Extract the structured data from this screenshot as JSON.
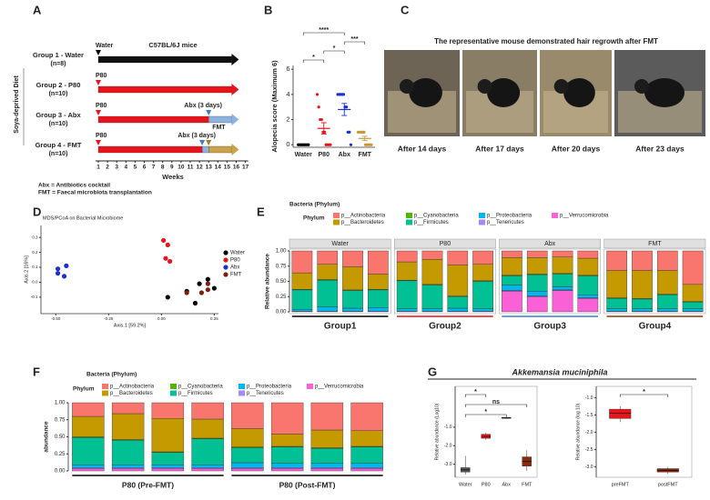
{
  "panel_labels": [
    "A",
    "B",
    "C",
    "D",
    "E",
    "F",
    "G"
  ],
  "timeline": {
    "strain": "C57BL/6J mice",
    "diet": "Soya-deprived Diet",
    "axis_label": "Weeks",
    "weeks": [
      1,
      2,
      3,
      4,
      5,
      6,
      7,
      8,
      9,
      10,
      11,
      12,
      13,
      14,
      15,
      16,
      17
    ],
    "groups": [
      {
        "name": "Group 1 - Water",
        "n": "(n=8)",
        "color": "#000000",
        "segments": [
          {
            "from": 1,
            "to": 15.5,
            "color": "#111111"
          }
        ],
        "markers": [
          {
            "week": 1,
            "label": "Water",
            "color": "#000000"
          }
        ]
      },
      {
        "name": "Group 2 - P80",
        "n": "(n=10)",
        "color": "#e8141b",
        "segments": [
          {
            "from": 1,
            "to": 15.5,
            "color": "#e8141b"
          }
        ],
        "markers": [
          {
            "week": 1,
            "label": "P80",
            "color": "#e8141b"
          }
        ]
      },
      {
        "name": "Group 3 - Abx",
        "n": "(n=10)",
        "color": "#3d7cc9",
        "segments": [
          {
            "from": 1,
            "to": 13,
            "color": "#e8141b"
          },
          {
            "from": 13,
            "to": 15.5,
            "color": "#8fb3e0"
          }
        ],
        "markers": [
          {
            "week": 1,
            "label": "P80",
            "color": "#e8141b"
          },
          {
            "week": 13,
            "label": "Abx (3 days)",
            "color": "#3d7cc9"
          }
        ]
      },
      {
        "name": "Group 4 - FMT",
        "n": "(n=10)",
        "color": "#a07c1c",
        "segments": [
          {
            "from": 1,
            "to": 12.3,
            "color": "#e8141b"
          },
          {
            "from": 12.3,
            "to": 13,
            "color": "#8fb3e0"
          },
          {
            "from": 13,
            "to": 15.5,
            "color": "#c9a24a"
          }
        ],
        "markers": [
          {
            "week": 1,
            "label": "P80",
            "color": "#e8141b"
          },
          {
            "week": 12.3,
            "label": "Abx (3 days)",
            "color": "#3d7cc9"
          },
          {
            "week": 13,
            "label": "FMT",
            "color": "#a07c1c"
          }
        ]
      }
    ],
    "footnotes": [
      "Abx = Antibiotics cocktail",
      "FMT = Faecal microbiota transplantation"
    ]
  },
  "photos": {
    "title": "The representative mouse demonstrated hair regrowth after FMT",
    "captions": [
      "After 14 days",
      "After 17 days",
      "After 20 days",
      "After 23 days"
    ]
  },
  "chart_data": [
    {
      "type": "dotplot",
      "ylabel": "Alopecia score (Maximum 6)",
      "categories": [
        "Water",
        "P80",
        "Abx",
        "FMT"
      ],
      "colors": [
        "#000000",
        "#e8141b",
        "#1c2fd0",
        "#c9973a"
      ],
      "values": [
        [
          0,
          0,
          0,
          0,
          0,
          0,
          0,
          0
        ],
        [
          4,
          3,
          2,
          2,
          1,
          1,
          0,
          0,
          0,
          0
        ],
        [
          4,
          4,
          4,
          4,
          4,
          3,
          3,
          1,
          1,
          0
        ],
        [
          1,
          1,
          1,
          1,
          1,
          0,
          0,
          0,
          0,
          0
        ]
      ],
      "means": [
        0,
        1.3,
        2.8,
        0.5
      ],
      "errors": [
        0,
        0.45,
        0.48,
        0.17
      ],
      "ylim": [
        -0.2,
        6.3
      ],
      "yticks": [
        0,
        2,
        4,
        6
      ],
      "comparisons": [
        {
          "from": "Water",
          "to": "Abx",
          "label": "****"
        },
        {
          "from": "Abx",
          "to": "FMT",
          "label": "***"
        },
        {
          "from": "P80",
          "to": "Abx",
          "label": "*"
        },
        {
          "from": "Water",
          "to": "P80",
          "label": "*"
        }
      ]
    },
    {
      "type": "scatter",
      "title": "MDS/PCoA on Bacterial Microbiome",
      "xlabel": "Axis.1   [59.2%]",
      "ylabel": "Axis.2   [16%]",
      "series": [
        {
          "name": "Water",
          "color": "#000000",
          "x": [
            0.03,
            0.12,
            0.16,
            0.18,
            0.22,
            0.25
          ],
          "y": [
            -0.1,
            -0.06,
            -0.14,
            -0.01,
            0.02,
            -0.04
          ]
        },
        {
          "name": "P80",
          "color": "#e8141b",
          "x": [
            0.01,
            0.03,
            0.02,
            0.04
          ],
          "y": [
            0.28,
            0.25,
            0.16,
            0.14
          ]
        },
        {
          "name": "Abx",
          "color": "#1c2fd0",
          "x": [
            -0.49,
            -0.45,
            -0.49,
            -0.46
          ],
          "y": [
            0.09,
            0.11,
            0.06,
            0.04
          ]
        },
        {
          "name": "FMT",
          "color": "#7a1f12",
          "x": [
            0.12,
            0.19,
            0.22,
            0.22
          ],
          "y": [
            -0.07,
            -0.07,
            -0.05,
            -0.01
          ]
        }
      ],
      "xlim": [
        -0.57,
        0.27
      ],
      "ylim": [
        -0.21,
        0.38
      ],
      "xticks": [
        {
          "value": -0.5,
          "label": "-0.50"
        },
        -0.25,
        {
          "value": 0,
          "label": "0.00"
        },
        0.25
      ],
      "yticks": [
        -0.1,
        {
          "value": 0,
          "label": "0.0"
        },
        0.1,
        0.2,
        0.3
      ]
    },
    {
      "type": "bar",
      "stacked": true,
      "title": "Bacteria (Phylum)",
      "legend_title": "Phylum",
      "ylabel": "Relative abundance",
      "categories": [
        null,
        null,
        null,
        null,
        null,
        null,
        null,
        null,
        null,
        null,
        null,
        null,
        null,
        null,
        null,
        null
      ],
      "facets": [
        "Water",
        "P80",
        "Abx",
        "FMT"
      ],
      "groups": [
        "Group1",
        "Group2",
        "Group3",
        "Group4"
      ],
      "group_colors": [
        "#000000",
        "#e8141b",
        "#3d7cc9",
        "#8b3a0a"
      ],
      "series": [
        {
          "name": "p__Actinobacteria",
          "color": "#f8766d",
          "values": [
            0.36,
            0.22,
            0.26,
            0.38,
            0.18,
            0.14,
            0.23,
            0.22,
            0.11,
            0.11,
            0.1,
            0.12,
            0.32,
            0.32,
            0.32,
            0.55
          ]
        },
        {
          "name": "p__Bacteroidetes",
          "color": "#c49a00",
          "values": [
            0.27,
            0.25,
            0.38,
            0.25,
            0.3,
            0.41,
            0.51,
            0.27,
            0.29,
            0.27,
            0.27,
            0.28,
            0.45,
            0.46,
            0.39,
            0.28
          ]
        },
        {
          "name": "p__Cyanobacteria",
          "color": "#53b400",
          "values": [
            0.01,
            0.01,
            0.01,
            0.01,
            0.01,
            0.01,
            0.01,
            0.01,
            0.01,
            0.01,
            0.01,
            0.01,
            0.01,
            0.01,
            0.01,
            0.01
          ]
        },
        {
          "name": "p__Firmicutes",
          "color": "#00c094",
          "values": [
            0.32,
            0.44,
            0.29,
            0.29,
            0.46,
            0.39,
            0.19,
            0.45,
            0.15,
            0.27,
            0.21,
            0.31,
            0.17,
            0.16,
            0.23,
            0.11
          ]
        },
        {
          "name": "p__Proteobacteria",
          "color": "#00b6eb",
          "values": [
            0.03,
            0.07,
            0.05,
            0.06,
            0.04,
            0.04,
            0.05,
            0.04,
            0.09,
            0.08,
            0.05,
            0.05,
            0.04,
            0.04,
            0.04,
            0.04
          ]
        },
        {
          "name": "p__Tenericutes",
          "color": "#a58aff",
          "values": [
            0.01,
            0.01,
            0.01,
            0.01,
            0.01,
            0.01,
            0.01,
            0.01,
            0.01,
            0.01,
            0.01,
            0.01,
            0.01,
            0.01,
            0.01,
            0.01
          ]
        },
        {
          "name": "p__Verrucomicrobia",
          "color": "#fb61d7",
          "values": [
            0,
            0,
            0,
            0,
            0,
            0,
            0,
            0,
            0.34,
            0.25,
            0.35,
            0.22,
            0,
            0,
            0,
            0
          ]
        }
      ],
      "ylim": [
        0,
        1
      ],
      "yticks": [
        {
          "value": 0,
          "label": "0.00"
        },
        0.25,
        {
          "value": 0.5,
          "label": "0.50"
        },
        0.75,
        {
          "value": 1,
          "label": "1.00"
        }
      ]
    },
    {
      "type": "bar",
      "stacked": true,
      "title": "Bacteria (Phylum)",
      "legend_title": "Phylum",
      "ylabel": "abundance",
      "categories": [
        null,
        null,
        null,
        null,
        null,
        null,
        null,
        null
      ],
      "groups": [
        "P80 (Pre-FMT)",
        "P80 (Post-FMT)"
      ],
      "group_colors": [
        "#000000",
        "#000000"
      ],
      "series": [
        {
          "name": "p__Actinobacteria",
          "color": "#f8766d",
          "values": [
            0.2,
            0.16,
            0.23,
            0.24,
            0.38,
            0.46,
            0.4,
            0.41
          ]
        },
        {
          "name": "p__Bacteroidetes",
          "color": "#c49a00",
          "values": [
            0.3,
            0.38,
            0.49,
            0.28,
            0.27,
            0.18,
            0.26,
            0.23
          ]
        },
        {
          "name": "p__Cyanobacteria",
          "color": "#53b400",
          "values": [
            0.01,
            0.01,
            0.01,
            0.01,
            0.01,
            0.01,
            0.01,
            0.01
          ]
        },
        {
          "name": "p__Firmicutes",
          "color": "#00c094",
          "values": [
            0.4,
            0.36,
            0.18,
            0.38,
            0.22,
            0.24,
            0.22,
            0.24
          ]
        },
        {
          "name": "p__Proteobacteria",
          "color": "#00b6eb",
          "values": [
            0.04,
            0.04,
            0.04,
            0.04,
            0.07,
            0.06,
            0.06,
            0.06
          ]
        },
        {
          "name": "p__Tenericutes",
          "color": "#a58aff",
          "values": [
            0.02,
            0.02,
            0.02,
            0.02,
            0.02,
            0.02,
            0.02,
            0.02
          ]
        },
        {
          "name": "p__Verrucomicrobia",
          "color": "#fb61d7",
          "values": [
            0.03,
            0.03,
            0.03,
            0.03,
            0.03,
            0.03,
            0.03,
            0.03
          ]
        }
      ],
      "ylim": [
        0,
        1
      ],
      "yticks": [
        {
          "value": 0,
          "label": "0.00"
        },
        0.25,
        {
          "value": 0.5,
          "label": "0.50"
        },
        0.75,
        {
          "value": 1,
          "label": "1.00"
        }
      ]
    },
    {
      "type": "box",
      "title": "Akkemansia muciniphila",
      "ylabel": "Relative abundance (Log10)",
      "categories": [
        "Water",
        "P80",
        "Abx",
        "FMT"
      ],
      "colors": [
        "#555555",
        "#e8141b",
        "#2b2fd6",
        "#8b2a0a"
      ],
      "boxes": [
        {
          "min": -3.55,
          "q1": -3.42,
          "median": -3.3,
          "q3": -3.18,
          "max": -2.55
        },
        {
          "min": -1.68,
          "q1": -1.6,
          "median": -1.5,
          "q3": -1.38,
          "max": -1.3
        },
        {
          "min": -0.55,
          "q1": -0.53,
          "median": -0.5,
          "q3": -0.47,
          "max": -0.45
        },
        {
          "min": -3.35,
          "q1": -3.1,
          "median": -2.85,
          "q3": -2.6,
          "max": -2.25
        }
      ],
      "ylim": [
        -3.7,
        1.2
      ],
      "yticks": [
        {
          "value": -3,
          "label": "-3.0"
        },
        {
          "value": -2,
          "label": "-2.0"
        },
        {
          "value": -1,
          "label": "-1.0"
        }
      ],
      "comparisons": [
        {
          "from": "Water",
          "to": "P80",
          "label": "*"
        },
        {
          "from": "Water",
          "to": "FMT",
          "label": "ns"
        },
        {
          "from": "Water",
          "to": "Abx",
          "label": "*"
        }
      ]
    },
    {
      "type": "box",
      "ylabel": "Relative abundance (log 10)",
      "categories": [
        "preFMT",
        "postFMT"
      ],
      "colors": [
        "#e8141b",
        "#8b2a0a"
      ],
      "boxes": [
        {
          "min": -1.7,
          "q1": -1.6,
          "median": -1.45,
          "q3": -1.33,
          "max": -1.25
        },
        {
          "min": -3.2,
          "q1": -3.15,
          "median": -3.1,
          "q3": -3.05,
          "max": -3.0
        }
      ],
      "ylim": [
        -3.3,
        -0.67
      ],
      "yticks": [
        {
          "value": -1,
          "label": "-1.0"
        },
        -1.5,
        {
          "value": -2,
          "label": "-2.0"
        },
        -2.5,
        {
          "value": -3,
          "label": "-3.0"
        }
      ],
      "comparisons": [
        {
          "from": "preFMT",
          "to": "postFMT",
          "label": "*"
        }
      ]
    }
  ]
}
